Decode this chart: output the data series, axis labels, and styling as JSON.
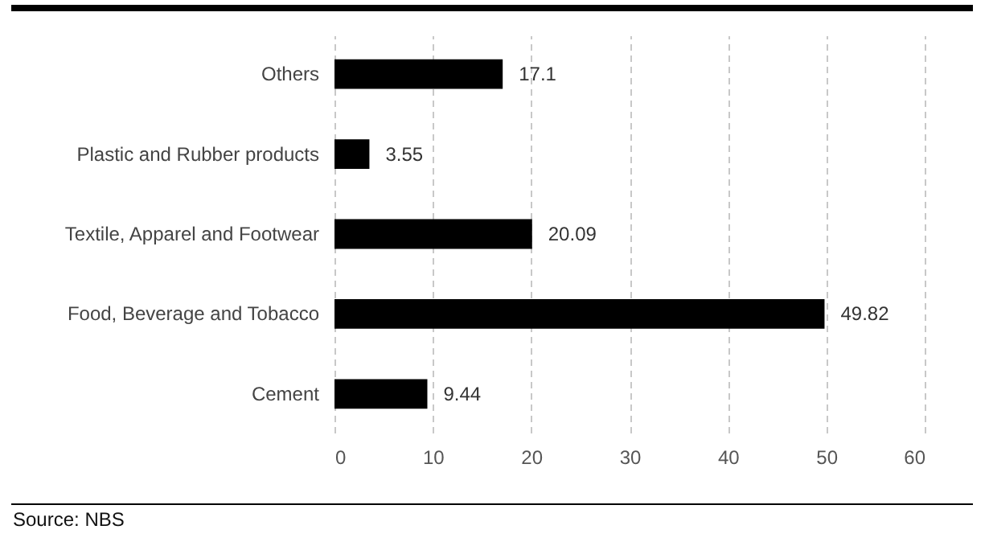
{
  "chart_data": {
    "type": "bar",
    "orientation": "horizontal",
    "categories": [
      "Others",
      "Plastic and Rubber products",
      "Textile, Apparel and Footwear",
      "Food, Beverage and Tobacco",
      "Cement"
    ],
    "values": [
      17.1,
      3.55,
      20.09,
      49.82,
      9.44
    ],
    "color": "#000000",
    "xlim": [
      0,
      60
    ],
    "xticks": [
      0,
      10,
      20,
      30,
      40,
      50,
      60
    ],
    "grid": "x",
    "data_labels": true,
    "annotations": [
      "Source: NBS"
    ]
  }
}
